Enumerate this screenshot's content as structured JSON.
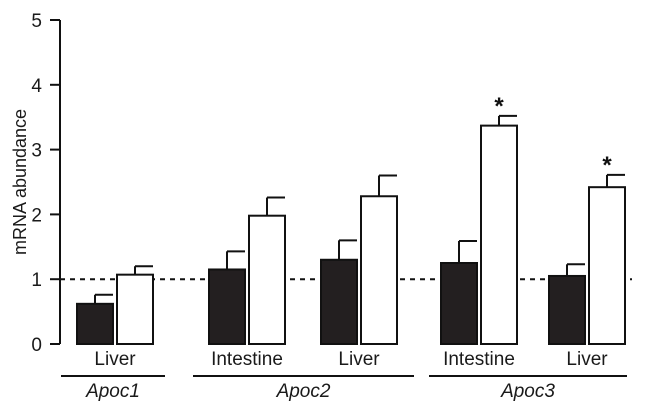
{
  "chart_data": {
    "type": "bar",
    "ylabel": "mRNA abundance",
    "ylim": [
      0,
      5
    ],
    "yticks": [
      "0",
      "1",
      "2",
      "3",
      "4",
      "5"
    ],
    "reference_line": 1,
    "reference_line_style": "dashed",
    "grid": false,
    "legend": "none",
    "groups": [
      {
        "gene": "Apoc1",
        "categories": [
          {
            "label": "Liver",
            "values": [
              0.62,
              1.07
            ],
            "errors": [
              0.14,
              0.13
            ],
            "significant": [
              false,
              false
            ]
          }
        ]
      },
      {
        "gene": "Apoc2",
        "categories": [
          {
            "label": "Intestine",
            "values": [
              1.15,
              1.98
            ],
            "errors": [
              0.28,
              0.28
            ],
            "significant": [
              false,
              false
            ]
          },
          {
            "label": "Liver",
            "values": [
              1.3,
              2.28
            ],
            "errors": [
              0.3,
              0.32
            ],
            "significant": [
              false,
              false
            ]
          }
        ]
      },
      {
        "gene": "Apoc3",
        "categories": [
          {
            "label": "Intestine",
            "values": [
              1.25,
              3.37
            ],
            "errors": [
              0.34,
              0.15
            ],
            "significant": [
              false,
              true
            ]
          },
          {
            "label": "Liver",
            "values": [
              1.05,
              2.42
            ],
            "errors": [
              0.18,
              0.19
            ],
            "significant": [
              false,
              true
            ]
          }
        ]
      }
    ],
    "significance_marker": "*",
    "colors": {
      "bar_dark": "#231f20",
      "bar_light": "#ffffff",
      "outline": "#111111"
    }
  }
}
